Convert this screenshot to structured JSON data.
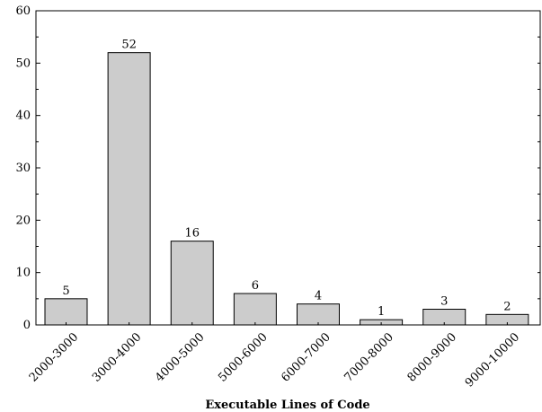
{
  "chart_data": {
    "type": "bar",
    "categories": [
      "2000-3000",
      "3000-4000",
      "4000-5000",
      "5000-6000",
      "6000-7000",
      "7000-8000",
      "8000-9000",
      "9000-10000"
    ],
    "values": [
      5,
      52,
      16,
      6,
      4,
      1,
      3,
      2
    ],
    "data_labels": [
      "5",
      "52",
      "16",
      "6",
      "4",
      "1",
      "3",
      "2"
    ],
    "title": "",
    "xlabel": "Executable Lines of Code",
    "ylabel": "",
    "ylim": [
      0,
      60
    ],
    "yticks": [
      0,
      10,
      20,
      30,
      40,
      50,
      60
    ],
    "grid": false,
    "bar_color": "#cccccc",
    "bar_edge_color": "#000000"
  }
}
